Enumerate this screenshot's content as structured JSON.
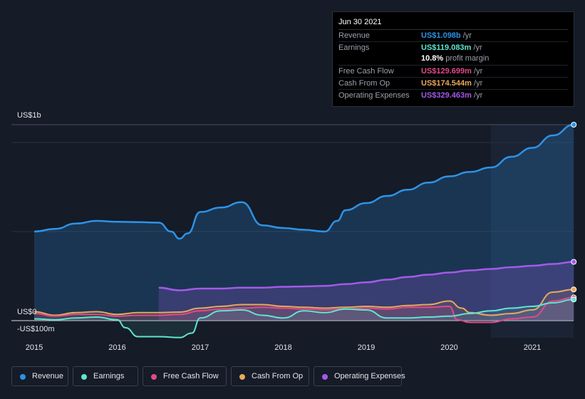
{
  "tooltip": {
    "date": "Jun 30 2021",
    "rows": [
      {
        "label": "Revenue",
        "value": "US$1.098b",
        "unit": "/yr",
        "color": "#2d93e6"
      },
      {
        "label": "Earnings",
        "value": "US$119.083m",
        "unit": "/yr",
        "color": "#5ee6cf"
      },
      {
        "label": "",
        "value": "10.8%",
        "unit": "profit margin",
        "color": "#ffffff"
      },
      {
        "label": "Free Cash Flow",
        "value": "US$129.699m",
        "unit": "/yr",
        "color": "#e04a8a"
      },
      {
        "label": "Cash From Op",
        "value": "US$174.544m",
        "unit": "/yr",
        "color": "#e8a85a"
      },
      {
        "label": "Operating Expenses",
        "value": "US$329.463m",
        "unit": "/yr",
        "color": "#a35ae8"
      }
    ]
  },
  "chart_data": {
    "type": "area",
    "y_tick_labels": [
      "US$1b",
      "US$0",
      "-US$100m"
    ],
    "y_ticks": [
      1100,
      0,
      -100
    ],
    "ylim": [
      -100,
      1100
    ],
    "x_tick_labels": [
      "2015",
      "2016",
      "2017",
      "2018",
      "2019",
      "2020",
      "2021"
    ],
    "x_ticks": [
      2015,
      2016,
      2017,
      2018,
      2019,
      2020,
      2021
    ],
    "xlim": [
      2014.7,
      2021.5
    ],
    "grid": true,
    "highlight_from": 2020.5,
    "legend_position": "bottom",
    "series": [
      {
        "name": "Revenue",
        "color": "#2d93e6",
        "x": [
          2015.0,
          2015.25,
          2015.5,
          2015.75,
          2016.0,
          2016.25,
          2016.5,
          2016.65,
          2016.75,
          2016.85,
          2017.0,
          2017.25,
          2017.5,
          2017.75,
          2018.0,
          2018.25,
          2018.5,
          2018.65,
          2018.75,
          2019.0,
          2019.25,
          2019.5,
          2019.75,
          2020.0,
          2020.25,
          2020.5,
          2020.75,
          2021.0,
          2021.25,
          2021.5
        ],
        "y": [
          500,
          515,
          545,
          560,
          555,
          553,
          550,
          500,
          460,
          490,
          610,
          635,
          665,
          535,
          520,
          510,
          500,
          560,
          620,
          660,
          700,
          735,
          775,
          810,
          835,
          860,
          920,
          970,
          1040,
          1100
        ]
      },
      {
        "name": "Operating Expenses",
        "color": "#a35ae8",
        "x": [
          2016.5,
          2016.75,
          2017.0,
          2017.25,
          2017.5,
          2017.75,
          2018.0,
          2018.25,
          2018.5,
          2018.75,
          2019.0,
          2019.25,
          2019.5,
          2019.75,
          2020.0,
          2020.25,
          2020.5,
          2020.75,
          2021.0,
          2021.25,
          2021.5
        ],
        "y": [
          185,
          170,
          180,
          180,
          185,
          185,
          190,
          192,
          195,
          205,
          215,
          230,
          245,
          258,
          270,
          282,
          290,
          300,
          308,
          318,
          330
        ]
      },
      {
        "name": "Cash From Op",
        "color": "#e8a85a",
        "x": [
          2015.0,
          2015.25,
          2015.5,
          2015.75,
          2016.0,
          2016.25,
          2016.5,
          2016.75,
          2017.0,
          2017.25,
          2017.5,
          2017.75,
          2018.0,
          2018.25,
          2018.5,
          2018.75,
          2019.0,
          2019.25,
          2019.5,
          2019.75,
          2020.0,
          2020.15,
          2020.25,
          2020.5,
          2020.75,
          2021.0,
          2021.25,
          2021.5
        ],
        "y": [
          50,
          30,
          45,
          50,
          35,
          45,
          45,
          48,
          70,
          80,
          90,
          90,
          80,
          75,
          70,
          75,
          80,
          75,
          85,
          90,
          110,
          70,
          45,
          30,
          40,
          60,
          160,
          175
        ]
      },
      {
        "name": "Free Cash Flow",
        "color": "#e04a8a",
        "x": [
          2015.0,
          2015.25,
          2015.5,
          2015.75,
          2016.0,
          2016.25,
          2016.5,
          2016.75,
          2017.0,
          2017.25,
          2017.5,
          2017.75,
          2018.0,
          2018.25,
          2018.5,
          2018.75,
          2019.0,
          2019.25,
          2019.5,
          2019.75,
          2020.0,
          2020.1,
          2020.25,
          2020.5,
          2020.75,
          2021.0,
          2021.25,
          2021.5
        ],
        "y": [
          40,
          25,
          35,
          35,
          25,
          30,
          30,
          35,
          55,
          65,
          70,
          75,
          70,
          65,
          60,
          65,
          70,
          65,
          75,
          75,
          80,
          5,
          -10,
          -10,
          10,
          20,
          110,
          130
        ]
      },
      {
        "name": "Earnings",
        "color": "#5ee6cf",
        "x": [
          2015.0,
          2015.25,
          2015.5,
          2015.75,
          2016.0,
          2016.1,
          2016.25,
          2016.5,
          2016.75,
          2016.9,
          2017.0,
          2017.25,
          2017.5,
          2017.75,
          2018.0,
          2018.25,
          2018.5,
          2018.75,
          2019.0,
          2019.25,
          2019.5,
          2019.75,
          2020.0,
          2020.25,
          2020.5,
          2020.75,
          2021.0,
          2021.25,
          2021.5
        ],
        "y": [
          10,
          5,
          15,
          20,
          5,
          -40,
          -90,
          -90,
          -95,
          -70,
          15,
          55,
          60,
          30,
          15,
          55,
          45,
          65,
          60,
          15,
          15,
          20,
          25,
          40,
          55,
          70,
          80,
          100,
          119
        ]
      }
    ]
  }
}
